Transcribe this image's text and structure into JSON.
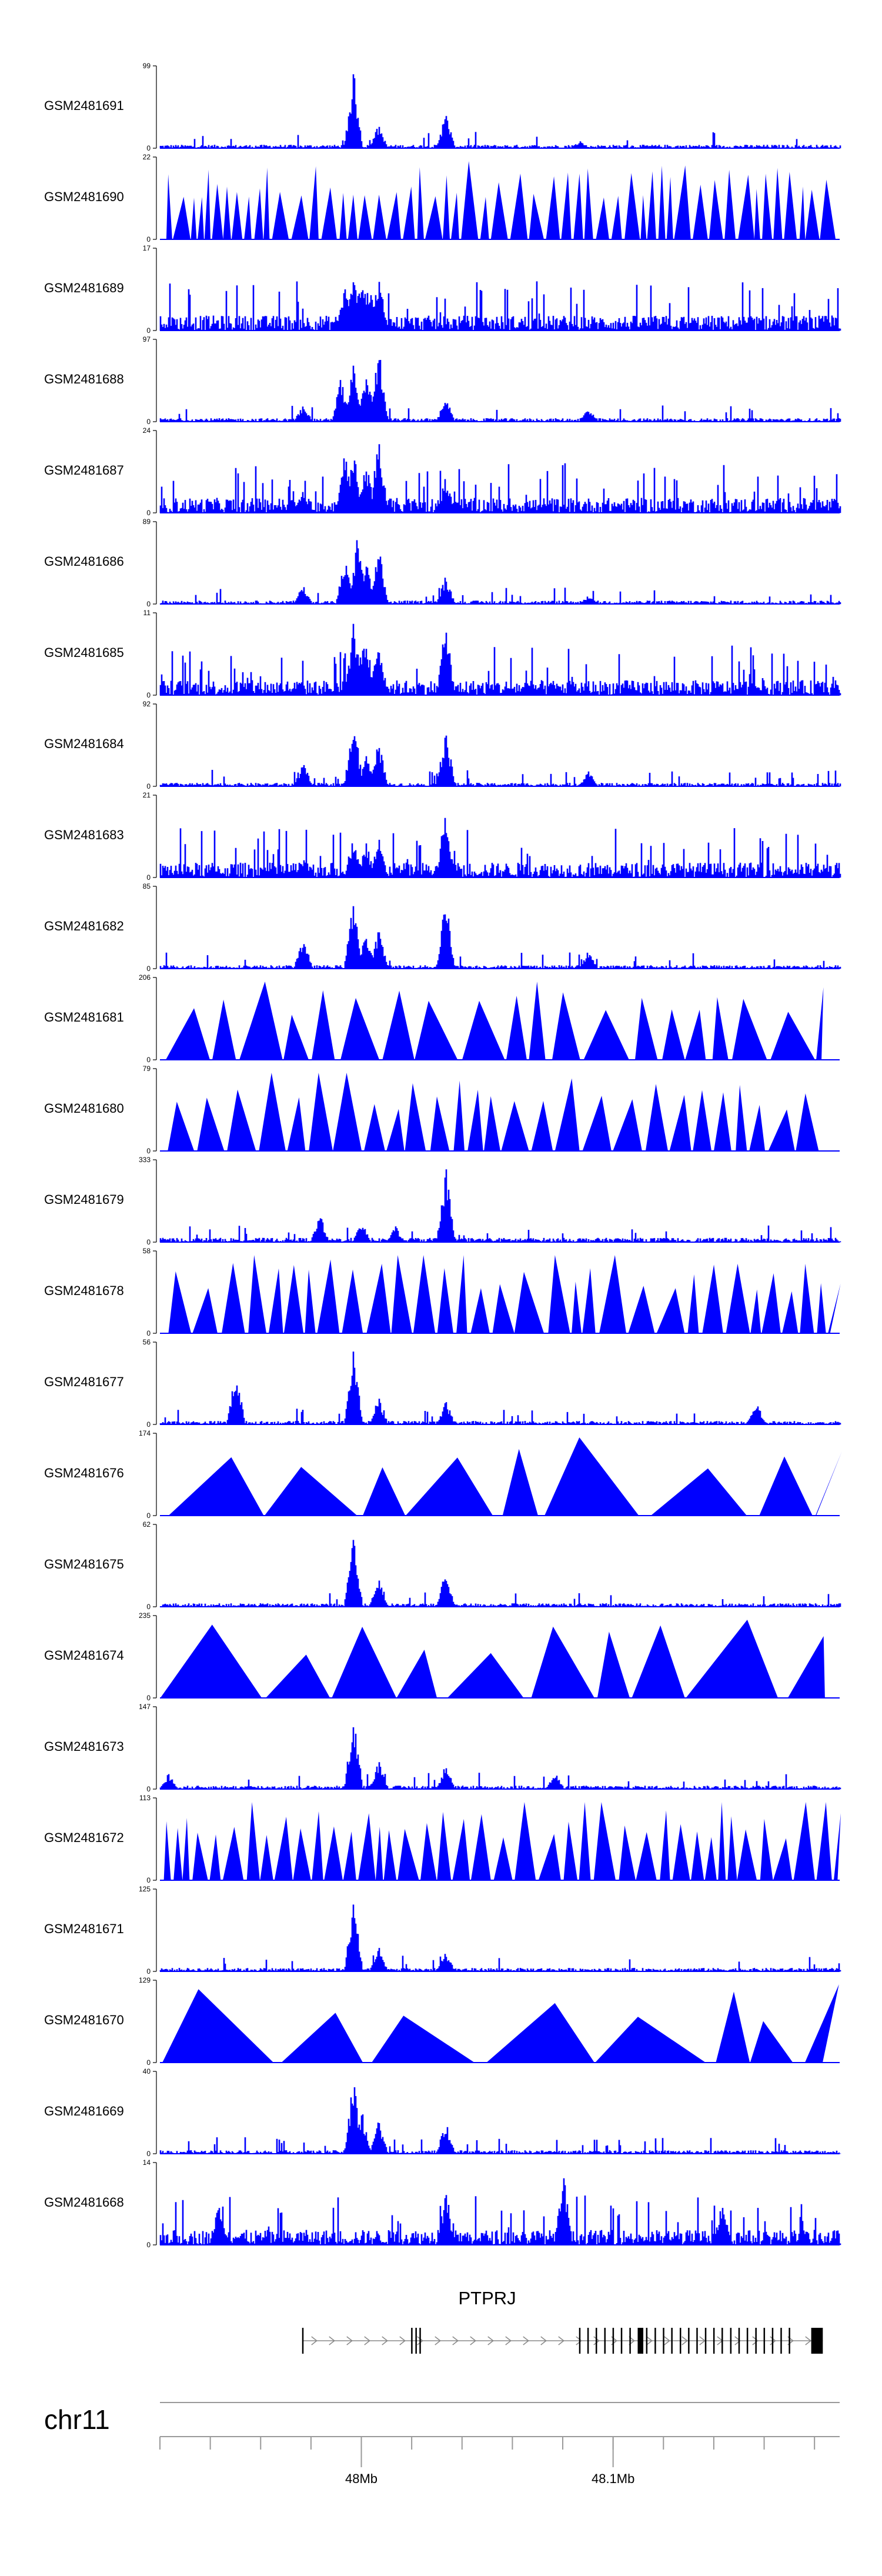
{
  "colors": {
    "signal": "#0000ff",
    "axis": "#000000",
    "gene": "#000000",
    "intron": "#888888",
    "chrline": "#999999"
  },
  "chart_data": {
    "type": "area",
    "xlim": [
      47.92,
      48.19
    ],
    "x_ticks": [
      {
        "value": 48.0,
        "label": "48Mb"
      },
      {
        "value": 48.1,
        "label": "48.1Mb"
      }
    ],
    "chromosome": "chr11",
    "tracks": [
      {
        "name": "GSM2481691",
        "ymax": "99",
        "ymin": "0",
        "style": "dense",
        "peaks": [
          [
            47.9967,
            95
          ],
          [
            48.0067,
            30
          ],
          [
            48.0333,
            45
          ],
          [
            48.0867,
            10
          ]
        ]
      },
      {
        "name": "GSM2481690",
        "ymax": "22",
        "ymin": "0",
        "style": "sparse",
        "n": 60,
        "peaks": []
      },
      {
        "name": "GSM2481689",
        "ymax": "17",
        "ymin": "0",
        "style": "noisy",
        "peaks": [
          [
            47.9933,
            55
          ],
          [
            47.9967,
            65
          ],
          [
            48.0,
            80
          ],
          [
            48.0067,
            75
          ],
          [
            48.0033,
            50
          ]
        ]
      },
      {
        "name": "GSM2481688",
        "ymax": "97",
        "ymin": "0",
        "style": "dense",
        "peaks": [
          [
            47.9767,
            22
          ],
          [
            47.9917,
            55
          ],
          [
            47.9967,
            85
          ],
          [
            48.0017,
            70
          ],
          [
            48.0067,
            95
          ],
          [
            48.0333,
            30
          ],
          [
            48.09,
            18
          ]
        ]
      },
      {
        "name": "GSM2481687",
        "ymax": "24",
        "ymin": "0",
        "style": "noisy",
        "peaks": [
          [
            47.9933,
            75
          ],
          [
            47.9967,
            85
          ],
          [
            48.0017,
            65
          ],
          [
            48.0067,
            95
          ],
          [
            48.0333,
            45
          ],
          [
            47.9767,
            30
          ]
        ]
      },
      {
        "name": "GSM2481686",
        "ymax": "89",
        "ymin": "0",
        "style": "dense",
        "peaks": [
          [
            47.9767,
            25
          ],
          [
            47.9933,
            55
          ],
          [
            47.9983,
            85
          ],
          [
            48.0017,
            60
          ],
          [
            48.0067,
            70
          ],
          [
            48.0333,
            35
          ],
          [
            48.09,
            10
          ]
        ]
      },
      {
        "name": "GSM2481685",
        "ymax": "11",
        "ymin": "0",
        "style": "noisy",
        "peaks": [
          [
            47.9967,
            95
          ],
          [
            48.0017,
            75
          ],
          [
            48.0067,
            70
          ],
          [
            48.0333,
            90
          ],
          [
            48.0,
            60
          ]
        ]
      },
      {
        "name": "GSM2481684",
        "ymax": "92",
        "ymin": "0",
        "style": "dense",
        "peaks": [
          [
            47.9767,
            30
          ],
          [
            47.9967,
            95
          ],
          [
            48.0017,
            40
          ],
          [
            48.0067,
            60
          ],
          [
            48.0333,
            75
          ],
          [
            48.09,
            20
          ]
        ]
      },
      {
        "name": "GSM2481683",
        "ymax": "21",
        "ymin": "0",
        "style": "noisy",
        "peaks": [
          [
            47.9967,
            55
          ],
          [
            48.0017,
            45
          ],
          [
            48.0067,
            50
          ],
          [
            48.0333,
            90
          ],
          [
            47.9767,
            25
          ]
        ]
      },
      {
        "name": "GSM2481682",
        "ymax": "85",
        "ymin": "0",
        "style": "dense",
        "peaks": [
          [
            47.9767,
            40
          ],
          [
            47.9967,
            90
          ],
          [
            48.0017,
            45
          ],
          [
            48.0067,
            55
          ],
          [
            48.0333,
            95
          ],
          [
            48.09,
            22
          ]
        ]
      },
      {
        "name": "GSM2481681",
        "ymax": "206",
        "ymin": "0",
        "style": "sparse",
        "n": 24,
        "peaks": [
          [
            47.9983,
            95
          ],
          [
            48.0333,
            70
          ],
          [
            48.0233,
            60
          ],
          [
            48.06,
            50
          ],
          [
            48.0867,
            80
          ]
        ]
      },
      {
        "name": "GSM2481680",
        "ymax": "79",
        "ymin": "0",
        "style": "sparse",
        "n": 35,
        "peaks": [
          [
            47.9567,
            90
          ],
          [
            47.9767,
            85
          ],
          [
            48.0233,
            90
          ],
          [
            48.0533,
            90
          ],
          [
            48.1433,
            90
          ]
        ]
      },
      {
        "name": "GSM2481679",
        "ymax": "333",
        "ymin": "0",
        "style": "low",
        "peaks": [
          [
            48.0333,
            95
          ],
          [
            47.9833,
            35
          ],
          [
            48.0,
            25
          ],
          [
            48.0133,
            20
          ]
        ]
      },
      {
        "name": "GSM2481678",
        "ymax": "58",
        "ymin": "0",
        "style": "sparse",
        "n": 38,
        "peaks": [
          [
            47.9233,
            95
          ],
          [
            48.0067,
            95
          ],
          [
            48.0367,
            60
          ],
          [
            48.0433,
            95
          ],
          [
            48.06,
            70
          ]
        ]
      },
      {
        "name": "GSM2481677",
        "ymax": "56",
        "ymin": "0",
        "style": "dense",
        "peaks": [
          [
            47.95,
            70
          ],
          [
            47.9967,
            95
          ],
          [
            48.0067,
            35
          ],
          [
            48.0333,
            30
          ],
          [
            48.1567,
            30
          ]
        ]
      },
      {
        "name": "GSM2481676",
        "ymax": "174",
        "ymin": "0",
        "style": "sparse",
        "n": 11,
        "peaks": [
          [
            48.1133,
            50
          ]
        ]
      },
      {
        "name": "GSM2481675",
        "ymax": "62",
        "ymin": "0",
        "style": "dense",
        "peaks": [
          [
            47.9967,
            95
          ],
          [
            48.0067,
            40
          ],
          [
            48.0333,
            45
          ]
        ]
      },
      {
        "name": "GSM2481674",
        "ymax": "235",
        "ymin": "0",
        "style": "sparse",
        "n": 11,
        "peaks": [
          [
            48.0067,
            95
          ],
          [
            48.1233,
            90
          ]
        ]
      },
      {
        "name": "GSM2481673",
        "ymax": "147",
        "ymin": "0",
        "style": "dense",
        "peaks": [
          [
            47.9233,
            20
          ],
          [
            47.9967,
            95
          ],
          [
            48.0067,
            35
          ],
          [
            48.0333,
            30
          ],
          [
            48.0767,
            20
          ]
        ]
      },
      {
        "name": "GSM2481672",
        "ymax": "113",
        "ymin": "0",
        "style": "sparse",
        "n": 50,
        "peaks": [
          [
            47.9967,
            95
          ],
          [
            48.0767,
            95
          ],
          [
            47.9633,
            65
          ],
          [
            48.0667,
            70
          ],
          [
            48.0733,
            65
          ]
        ]
      },
      {
        "name": "GSM2481671",
        "ymax": "125",
        "ymin": "0",
        "style": "dense",
        "peaks": [
          [
            47.9967,
            95
          ],
          [
            48.0067,
            30
          ],
          [
            48.0333,
            25
          ]
        ]
      },
      {
        "name": "GSM2481670",
        "ymax": "129",
        "ymin": "0",
        "style": "sparse",
        "n": 10,
        "peaks": []
      },
      {
        "name": "GSM2481669",
        "ymax": "40",
        "ymin": "0",
        "style": "dense",
        "peaks": [
          [
            47.9967,
            95
          ],
          [
            48.0,
            55
          ],
          [
            48.0067,
            45
          ],
          [
            48.0333,
            40
          ]
        ]
      },
      {
        "name": "GSM2481668",
        "ymax": "14",
        "ymin": "0",
        "style": "noisy",
        "peaks": [
          [
            48.08,
            90
          ],
          [
            48.1433,
            60
          ],
          [
            48.0333,
            65
          ],
          [
            47.9433,
            55
          ]
        ]
      }
    ],
    "gene": {
      "name": "PTPRJ",
      "start": 47.9767,
      "end": 48.1833,
      "exons": [
        47.9767,
        48.02,
        48.0217,
        48.0233,
        48.0867,
        48.09,
        48.0933,
        48.0967,
        48.1,
        48.1033,
        48.1067,
        48.11,
        48.1133,
        48.1167,
        48.12,
        48.1233,
        48.1267,
        48.13,
        48.1333,
        48.1367,
        48.14,
        48.1433,
        48.1467,
        48.15,
        48.1533,
        48.1567,
        48.16,
        48.1633,
        48.1667,
        48.17
      ],
      "thick_exons": [
        [
          48.11,
          48.112
        ],
        [
          48.1787,
          48.1833
        ]
      ]
    }
  }
}
